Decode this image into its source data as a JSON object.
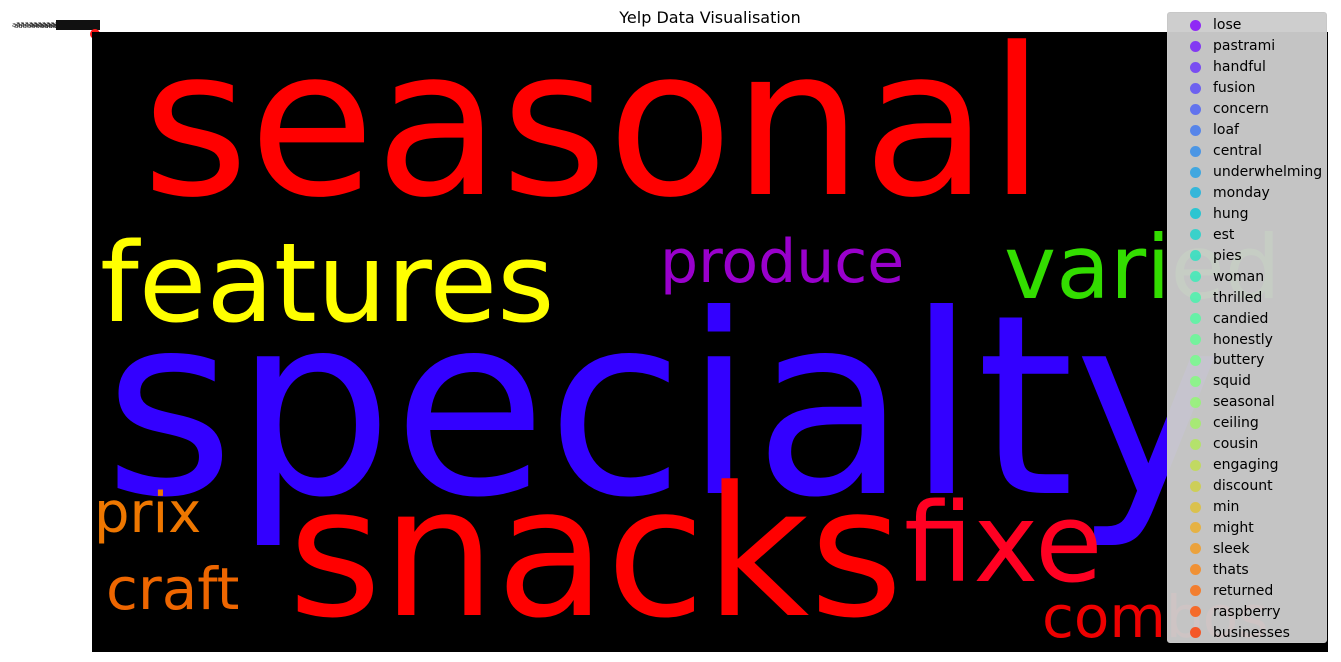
{
  "chart_data": {
    "type": "wordcloud",
    "title": "Yelp Data Visualisation",
    "words": [
      {
        "text": "seasonal",
        "color": "#ff0000"
      },
      {
        "text": "features",
        "color": "#ffff00"
      },
      {
        "text": "produce",
        "color": "#9900cc"
      },
      {
        "text": "varied",
        "color": "#33dd00"
      },
      {
        "text": "specialty",
        "color": "#3300ff"
      },
      {
        "text": "prix",
        "color": "#ee7700"
      },
      {
        "text": "craft",
        "color": "#ee6600"
      },
      {
        "text": "snacks",
        "color": "#ff0000"
      },
      {
        "text": "fixe",
        "color": "#ff0022"
      },
      {
        "text": "combos",
        "color": "#ee0000"
      }
    ],
    "legend": [
      {
        "label": "lose",
        "color": "#8000ff"
      },
      {
        "label": "pastrami",
        "color": "#7318fe"
      },
      {
        "label": "handful",
        "color": "#6630fd"
      },
      {
        "label": "fusion",
        "color": "#5848fa"
      },
      {
        "label": "concern",
        "color": "#4a5ff7"
      },
      {
        "label": "loaf",
        "color": "#3c76f2"
      },
      {
        "label": "central",
        "color": "#2e8bec"
      },
      {
        "label": "underwhelming",
        "color": "#20a0e6"
      },
      {
        "label": "monday",
        "color": "#12b3de"
      },
      {
        "label": "hung",
        "color": "#06c5d5"
      },
      {
        "label": "est",
        "color": "#18d5cc"
      },
      {
        "label": "pies",
        "color": "#26e2c1"
      },
      {
        "label": "woman",
        "color": "#34edb7"
      },
      {
        "label": "thrilled",
        "color": "#42f5ab"
      },
      {
        "label": "candied",
        "color": "#50fba0"
      },
      {
        "label": "honestly",
        "color": "#60fe94"
      },
      {
        "label": "buttery",
        "color": "#70ff88"
      },
      {
        "label": "squid",
        "color": "#80fe7c"
      },
      {
        "label": "seasonal",
        "color": "#90fa6f"
      },
      {
        "label": "ceiling",
        "color": "#a0f363"
      },
      {
        "label": "cousin",
        "color": "#b0ea56"
      },
      {
        "label": "engaging",
        "color": "#c0df4a"
      },
      {
        "label": "discount",
        "color": "#d0d13d"
      },
      {
        "label": "min",
        "color": "#e0c031"
      },
      {
        "label": "might",
        "color": "#eeae25"
      },
      {
        "label": "sleek",
        "color": "#f59a1b"
      },
      {
        "label": "thats",
        "color": "#fb8412"
      },
      {
        "label": "returned",
        "color": "#fe6d0b"
      },
      {
        "label": "raspberry",
        "color": "#ff5505"
      },
      {
        "label": "businesses",
        "color": "#ff3c00"
      }
    ],
    "legend_placement": "upper-right",
    "axes": "off"
  }
}
